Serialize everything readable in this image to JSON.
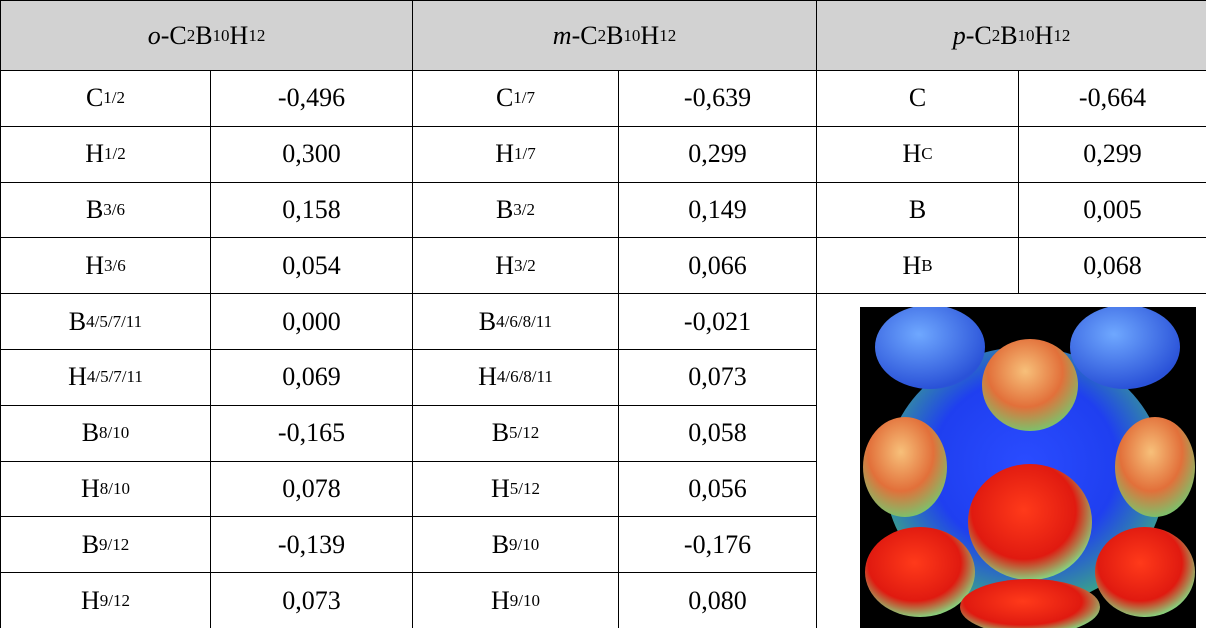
{
  "table": {
    "groups": [
      {
        "isomer": "o",
        "formula": [
          [
            "-C",
            "2"
          ],
          [
            "B",
            "10"
          ],
          [
            "H",
            "12"
          ]
        ],
        "rows": [
          [
            [
              "C",
              "1/2"
            ],
            "-0,496"
          ],
          [
            [
              "H",
              "1/2"
            ],
            "0,300"
          ],
          [
            [
              "B",
              "3/6"
            ],
            "0,158"
          ],
          [
            [
              "H",
              "3/6"
            ],
            "0,054"
          ],
          [
            [
              "B",
              "4/5/7/11"
            ],
            "0,000"
          ],
          [
            [
              "H",
              "4/5/7/11"
            ],
            "0,069"
          ],
          [
            [
              "B",
              "8/10"
            ],
            "-0,165"
          ],
          [
            [
              "H",
              "8/10"
            ],
            "0,078"
          ],
          [
            [
              "B",
              "9/12"
            ],
            "-0,139"
          ],
          [
            [
              "H",
              "9/12"
            ],
            "0,073"
          ]
        ]
      },
      {
        "isomer": "m",
        "formula": [
          [
            "-C",
            "2"
          ],
          [
            "B",
            "10"
          ],
          [
            "H",
            "12"
          ]
        ],
        "rows": [
          [
            [
              "C",
              "1/7"
            ],
            "-0,639"
          ],
          [
            [
              "H",
              "1/7"
            ],
            "0,299"
          ],
          [
            [
              "B",
              "3/2"
            ],
            "0,149"
          ],
          [
            [
              "H",
              "3/2"
            ],
            "0,066"
          ],
          [
            [
              "B",
              "4/6/8/11"
            ],
            "-0,021"
          ],
          [
            [
              "H",
              "4/6/8/11"
            ],
            "0,073"
          ],
          [
            [
              "B",
              "5/12"
            ],
            "0,058"
          ],
          [
            [
              "H",
              "5/12"
            ],
            "0,056"
          ],
          [
            [
              "B",
              "9/10"
            ],
            "-0,176"
          ],
          [
            [
              "H",
              "9/10"
            ],
            "0,080"
          ]
        ]
      },
      {
        "isomer": "p",
        "formula": [
          [
            "-C",
            "2"
          ],
          [
            "B",
            "10"
          ],
          [
            "H",
            "12"
          ]
        ],
        "rows": [
          [
            [
              "C"
            ],
            "-0,664"
          ],
          [
            [
              "H",
              "C"
            ],
            "0,299"
          ],
          [
            [
              "B"
            ],
            "0,005"
          ],
          [
            [
              "H",
              "B"
            ],
            "0,068"
          ]
        ]
      }
    ]
  }
}
